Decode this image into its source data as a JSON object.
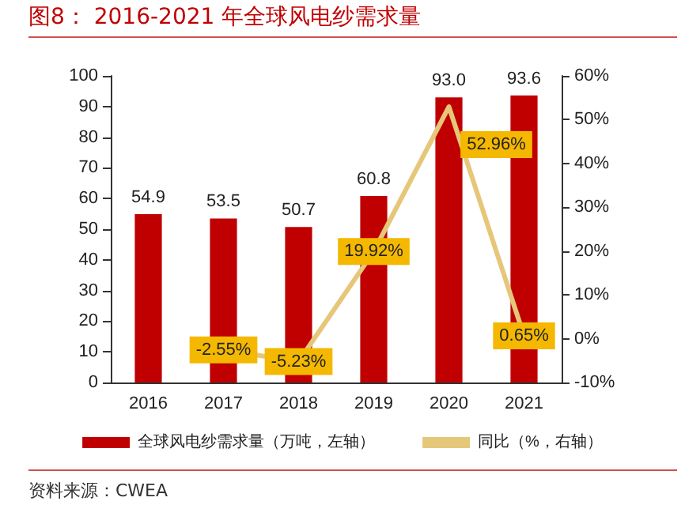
{
  "chart_data": {
    "type": "bar",
    "title": "图8：  2016-2021 年全球风电纱需求量",
    "categories": [
      "2016",
      "2017",
      "2018",
      "2019",
      "2020",
      "2021"
    ],
    "series": [
      {
        "name": "全球风电纱需求量（万吨，左轴）",
        "color": "#c00000",
        "values": [
          54.9,
          53.5,
          50.7,
          60.8,
          93.0,
          93.6
        ],
        "value_labels": [
          "54.9",
          "53.5",
          "50.7",
          "60.8",
          "93.0",
          "93.6"
        ]
      },
      {
        "name": "同比（%，右轴）",
        "type": "line",
        "axis": "y2",
        "color": "#e6c77a",
        "values": [
          null,
          -2.55,
          -5.23,
          19.92,
          52.96,
          0.65
        ],
        "value_labels": [
          null,
          "-2.55%",
          "-5.23%",
          "19.92%",
          "52.96%",
          "0.65%"
        ]
      }
    ],
    "ylim": [
      0,
      100
    ],
    "yticks": [
      0,
      10,
      20,
      30,
      40,
      50,
      60,
      70,
      80,
      90,
      100
    ],
    "y2lim": [
      -10,
      60
    ],
    "y2ticks": [
      {
        "value": -10,
        "label": "-10%"
      },
      {
        "value": 0,
        "label": "0%"
      },
      {
        "value": 10,
        "label": "10%"
      },
      {
        "value": 20,
        "label": "20%"
      },
      {
        "value": 30,
        "label": "30%"
      },
      {
        "value": 40,
        "label": "40%"
      },
      {
        "value": 50,
        "label": "50%"
      },
      {
        "value": 60,
        "label": "60%"
      }
    ],
    "grid": false,
    "legend": "bottom",
    "line_style": "solid",
    "annotations": [
      "资料来源：CWEA"
    ]
  }
}
